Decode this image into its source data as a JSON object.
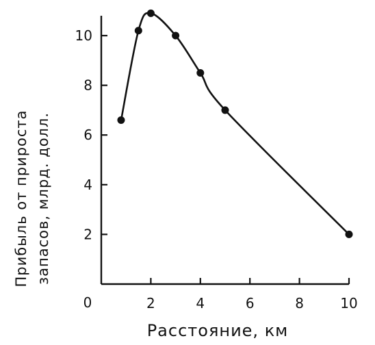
{
  "chart_data": {
    "type": "line",
    "xlabel": "Расстояние, км",
    "ylabel_lines": [
      "Прибыль от прироста",
      "запасов, млрд. долл."
    ],
    "xlim": [
      0,
      10
    ],
    "ylim": [
      0,
      10.8
    ],
    "x_ticks": [
      2,
      4,
      6,
      8,
      10
    ],
    "y_ticks": [
      2,
      4,
      6,
      8,
      10
    ],
    "origin_label": "0",
    "grid": false,
    "series": [
      {
        "x": [
          0.8,
          1.5,
          2.0,
          3.0,
          4.0,
          5.0,
          10.0
        ],
        "y": [
          6.6,
          10.2,
          10.9,
          10.0,
          8.5,
          7.0,
          2.0
        ],
        "color": "#111111",
        "marker": "filled-circle"
      }
    ]
  }
}
